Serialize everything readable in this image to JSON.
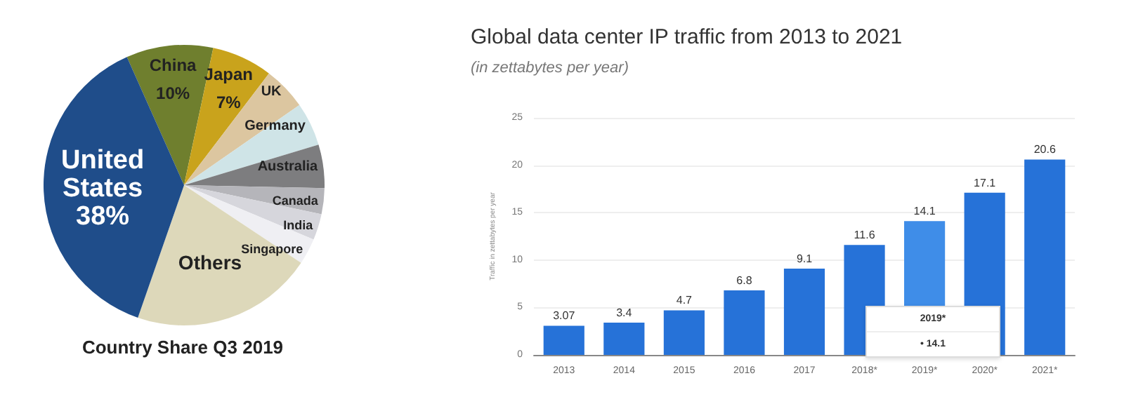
{
  "chart_data": [
    {
      "type": "pie",
      "title": "Country Share Q3 2019",
      "categories": [
        "China",
        "Japan",
        "UK",
        "Germany",
        "Australia",
        "Canada",
        "India",
        "Singapore",
        "Others",
        "United States"
      ],
      "values": [
        10,
        7,
        5,
        5,
        5,
        3,
        3,
        3,
        21,
        38
      ],
      "value_labels": [
        "10%",
        "7%",
        null,
        null,
        null,
        null,
        null,
        null,
        null,
        "38%"
      ],
      "colors": [
        "#6f7f2e",
        "#c9a31c",
        "#dcc6a0",
        "#cfe4e7",
        "#7d7d7f",
        "#b5b5ba",
        "#d6d6dc",
        "#efeff3",
        "#ddd8ba",
        "#1f4d8a"
      ],
      "legend": false
    },
    {
      "type": "bar",
      "title": "Global data center IP traffic from 2013 to 2021",
      "subtitle": "(in zettabytes per year)",
      "ylabel": "Traffic in zettabytes per year",
      "categories": [
        "2013",
        "2014",
        "2015",
        "2016",
        "2017",
        "2018*",
        "2019*",
        "2020*",
        "2021*"
      ],
      "values": [
        3.07,
        3.4,
        4.7,
        6.8,
        9.1,
        11.6,
        14.1,
        17.1,
        20.6
      ],
      "colors": [
        "#2672d8",
        "#2672d8",
        "#2672d8",
        "#2672d8",
        "#2672d8",
        "#2672d8",
        "#3f8de8",
        "#2672d8",
        "#2672d8"
      ],
      "data_labels": true,
      "annotations": [
        "2019*",
        "• 14.1"
      ],
      "ylim": [
        0,
        25
      ],
      "yticks": [
        0,
        5,
        10,
        15,
        20,
        25
      ],
      "grid": "y",
      "legend": false
    }
  ]
}
